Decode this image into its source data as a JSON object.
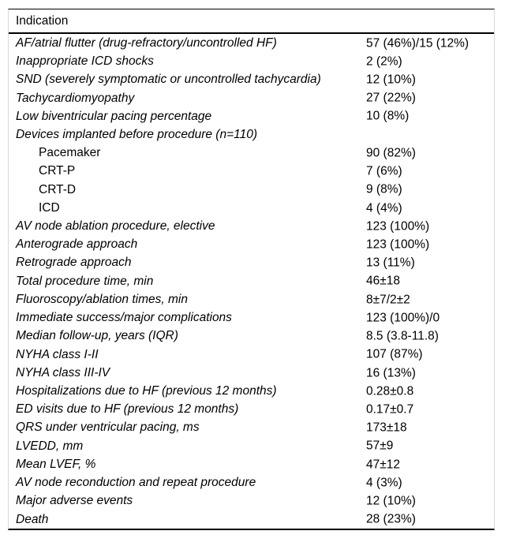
{
  "colors": {
    "background": "#ffffff",
    "text": "#000000",
    "rule": "#000000",
    "side_border": "#d8d8d8"
  },
  "table": {
    "header": "Indication",
    "rows": [
      {
        "label": "AF/atrial flutter (drug-refractory/uncontrolled HF)",
        "value": "57 (46%)/15 (12%)",
        "italic": true,
        "indent": false
      },
      {
        "label": "Inappropriate ICD shocks",
        "value": "2 (2%)",
        "italic": true,
        "indent": false
      },
      {
        "label": "SND (severely symptomatic or uncontrolled tachycardia)",
        "value": "12 (10%)",
        "italic": true,
        "indent": false
      },
      {
        "label": "Tachycardiomyopathy",
        "value": "27 (22%)",
        "italic": true,
        "indent": false
      },
      {
        "label": "Low biventricular pacing percentage",
        "value": "10 (8%)",
        "italic": true,
        "indent": false
      },
      {
        "label": "Devices implanted before procedure (n=110)",
        "value": "",
        "italic": true,
        "indent": false
      },
      {
        "label": "Pacemaker",
        "value": "90 (82%)",
        "italic": false,
        "indent": true
      },
      {
        "label": "CRT-P",
        "value": "7 (6%)",
        "italic": false,
        "indent": true
      },
      {
        "label": "CRT-D",
        "value": "9 (8%)",
        "italic": false,
        "indent": true
      },
      {
        "label": "ICD",
        "value": "4 (4%)",
        "italic": false,
        "indent": true
      },
      {
        "label": "AV node ablation procedure, elective",
        "value": "123 (100%)",
        "italic": true,
        "indent": false
      },
      {
        "label": "Anterograde approach",
        "value": "123 (100%)",
        "italic": true,
        "indent": false
      },
      {
        "label": "Retrograde approach",
        "value": "13 (11%)",
        "italic": true,
        "indent": false
      },
      {
        "label": "Total procedure time, min",
        "value": "46±18",
        "italic": true,
        "indent": false
      },
      {
        "label": "Fluoroscopy/ablation times, min",
        "value": "8±7/2±2",
        "italic": true,
        "indent": false
      },
      {
        "label": "Immediate success/major complications",
        "value": "123 (100%)/0",
        "italic": true,
        "indent": false
      },
      {
        "label": "Median follow-up, years (IQR)",
        "value": "8.5 (3.8-11.8)",
        "italic": true,
        "indent": false
      },
      {
        "label": "NYHA class I-II",
        "value": "107 (87%)",
        "italic": true,
        "indent": false
      },
      {
        "label": "NYHA class III-IV",
        "value": "16 (13%)",
        "italic": true,
        "indent": false
      },
      {
        "label": "Hospitalizations due to HF (previous 12 months)",
        "value": "0.28±0.8",
        "italic": true,
        "indent": false
      },
      {
        "label": "ED visits due to HF (previous 12 months)",
        "value": "0.17±0.7",
        "italic": true,
        "indent": false
      },
      {
        "label": "QRS under ventricular pacing, ms",
        "value": "173±18",
        "italic": true,
        "indent": false
      },
      {
        "label": "LVEDD, mm",
        "value": "57±9",
        "italic": true,
        "indent": false
      },
      {
        "label": "Mean LVEF, %",
        "value": "47±12",
        "italic": true,
        "indent": false
      },
      {
        "label": "AV node reconduction and repeat procedure",
        "value": "4 (3%)",
        "italic": true,
        "indent": false
      },
      {
        "label": "Major adverse events",
        "value": "12 (10%)",
        "italic": true,
        "indent": false
      },
      {
        "label": "Death",
        "value": "28 (23%)",
        "italic": true,
        "indent": false
      }
    ]
  }
}
